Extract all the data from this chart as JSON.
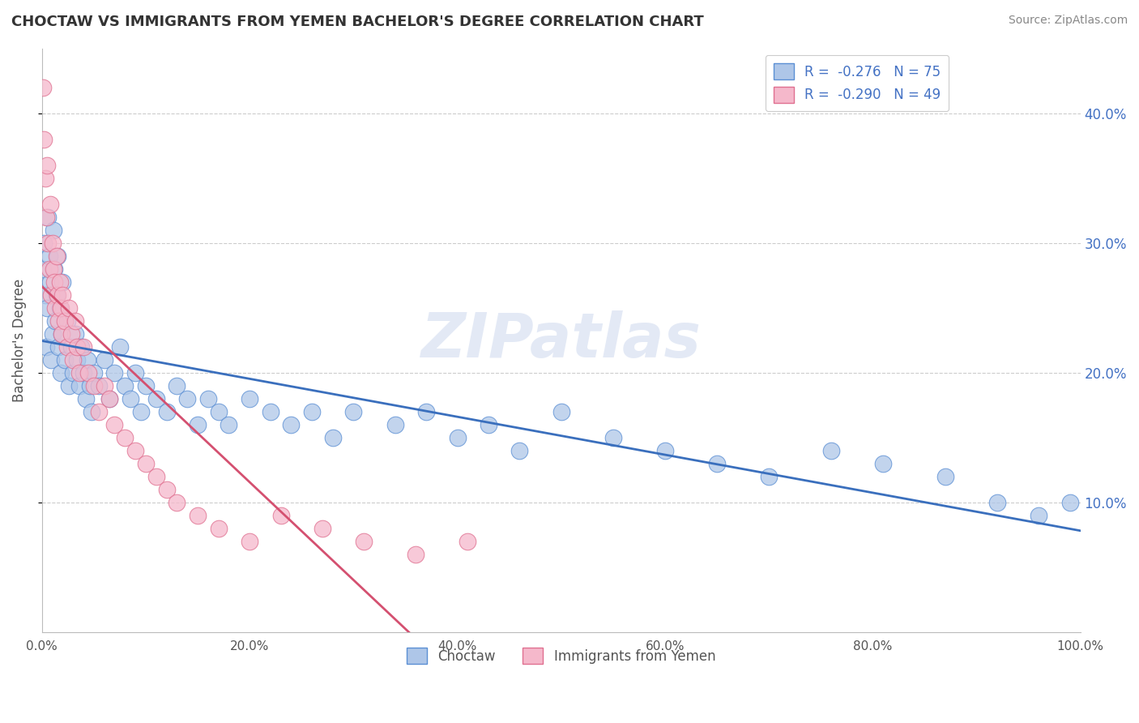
{
  "title": "CHOCTAW VS IMMIGRANTS FROM YEMEN BACHELOR'S DEGREE CORRELATION CHART",
  "source": "Source: ZipAtlas.com",
  "ylabel": "Bachelor's Degree",
  "R_choctaw": -0.276,
  "N_choctaw": 75,
  "R_yemen": -0.29,
  "N_yemen": 49,
  "choctaw_color": "#aec6e8",
  "choctaw_edge_color": "#5b8fd4",
  "choctaw_line_color": "#3a6fbd",
  "yemen_color": "#f5b8cb",
  "yemen_edge_color": "#e07090",
  "yemen_line_color": "#d45070",
  "background_color": "#ffffff",
  "watermark": "ZIPatlas",
  "xlim": [
    0.0,
    1.0
  ],
  "ylim": [
    0.0,
    0.45
  ],
  "xticks": [
    0.0,
    0.2,
    0.4,
    0.6,
    0.8,
    1.0
  ],
  "yticks_right": [
    0.1,
    0.2,
    0.3,
    0.4
  ],
  "xtick_labels": [
    "0.0%",
    "20.0%",
    "40.0%",
    "60.0%",
    "80.0%",
    "100.0%"
  ],
  "ytick_labels_right": [
    "10.0%",
    "20.0%",
    "30.0%",
    "40.0%"
  ],
  "legend_bottom_labels": [
    "Choctaw",
    "Immigrants from Yemen"
  ],
  "choctaw_x": [
    0.001,
    0.002,
    0.003,
    0.004,
    0.005,
    0.006,
    0.007,
    0.008,
    0.009,
    0.01,
    0.011,
    0.012,
    0.013,
    0.014,
    0.015,
    0.016,
    0.017,
    0.018,
    0.019,
    0.02,
    0.022,
    0.024,
    0.026,
    0.028,
    0.03,
    0.032,
    0.034,
    0.036,
    0.038,
    0.04,
    0.042,
    0.044,
    0.046,
    0.048,
    0.05,
    0.055,
    0.06,
    0.065,
    0.07,
    0.075,
    0.08,
    0.085,
    0.09,
    0.095,
    0.1,
    0.11,
    0.12,
    0.13,
    0.14,
    0.15,
    0.16,
    0.17,
    0.18,
    0.2,
    0.22,
    0.24,
    0.26,
    0.28,
    0.3,
    0.34,
    0.37,
    0.4,
    0.43,
    0.46,
    0.5,
    0.55,
    0.6,
    0.65,
    0.7,
    0.76,
    0.81,
    0.87,
    0.92,
    0.96,
    0.99
  ],
  "choctaw_y": [
    0.28,
    0.3,
    0.26,
    0.22,
    0.25,
    0.32,
    0.29,
    0.27,
    0.21,
    0.23,
    0.31,
    0.28,
    0.24,
    0.26,
    0.29,
    0.22,
    0.25,
    0.2,
    0.23,
    0.27,
    0.21,
    0.24,
    0.19,
    0.22,
    0.2,
    0.23,
    0.21,
    0.19,
    0.22,
    0.2,
    0.18,
    0.21,
    0.19,
    0.17,
    0.2,
    0.19,
    0.21,
    0.18,
    0.2,
    0.22,
    0.19,
    0.18,
    0.2,
    0.17,
    0.19,
    0.18,
    0.17,
    0.19,
    0.18,
    0.16,
    0.18,
    0.17,
    0.16,
    0.18,
    0.17,
    0.16,
    0.17,
    0.15,
    0.17,
    0.16,
    0.17,
    0.15,
    0.16,
    0.14,
    0.17,
    0.15,
    0.14,
    0.13,
    0.12,
    0.14,
    0.13,
    0.12,
    0.1,
    0.09,
    0.1
  ],
  "yemen_x": [
    0.001,
    0.002,
    0.003,
    0.004,
    0.005,
    0.006,
    0.007,
    0.008,
    0.009,
    0.01,
    0.011,
    0.012,
    0.013,
    0.014,
    0.015,
    0.016,
    0.017,
    0.018,
    0.019,
    0.02,
    0.022,
    0.024,
    0.026,
    0.028,
    0.03,
    0.032,
    0.034,
    0.036,
    0.04,
    0.045,
    0.05,
    0.055,
    0.06,
    0.065,
    0.07,
    0.08,
    0.09,
    0.1,
    0.11,
    0.12,
    0.13,
    0.15,
    0.17,
    0.2,
    0.23,
    0.27,
    0.31,
    0.36,
    0.41
  ],
  "yemen_y": [
    0.42,
    0.38,
    0.35,
    0.32,
    0.36,
    0.3,
    0.28,
    0.33,
    0.26,
    0.3,
    0.28,
    0.27,
    0.25,
    0.29,
    0.26,
    0.24,
    0.27,
    0.25,
    0.23,
    0.26,
    0.24,
    0.22,
    0.25,
    0.23,
    0.21,
    0.24,
    0.22,
    0.2,
    0.22,
    0.2,
    0.19,
    0.17,
    0.19,
    0.18,
    0.16,
    0.15,
    0.14,
    0.13,
    0.12,
    0.11,
    0.1,
    0.09,
    0.08,
    0.07,
    0.09,
    0.08,
    0.07,
    0.06,
    0.07
  ]
}
